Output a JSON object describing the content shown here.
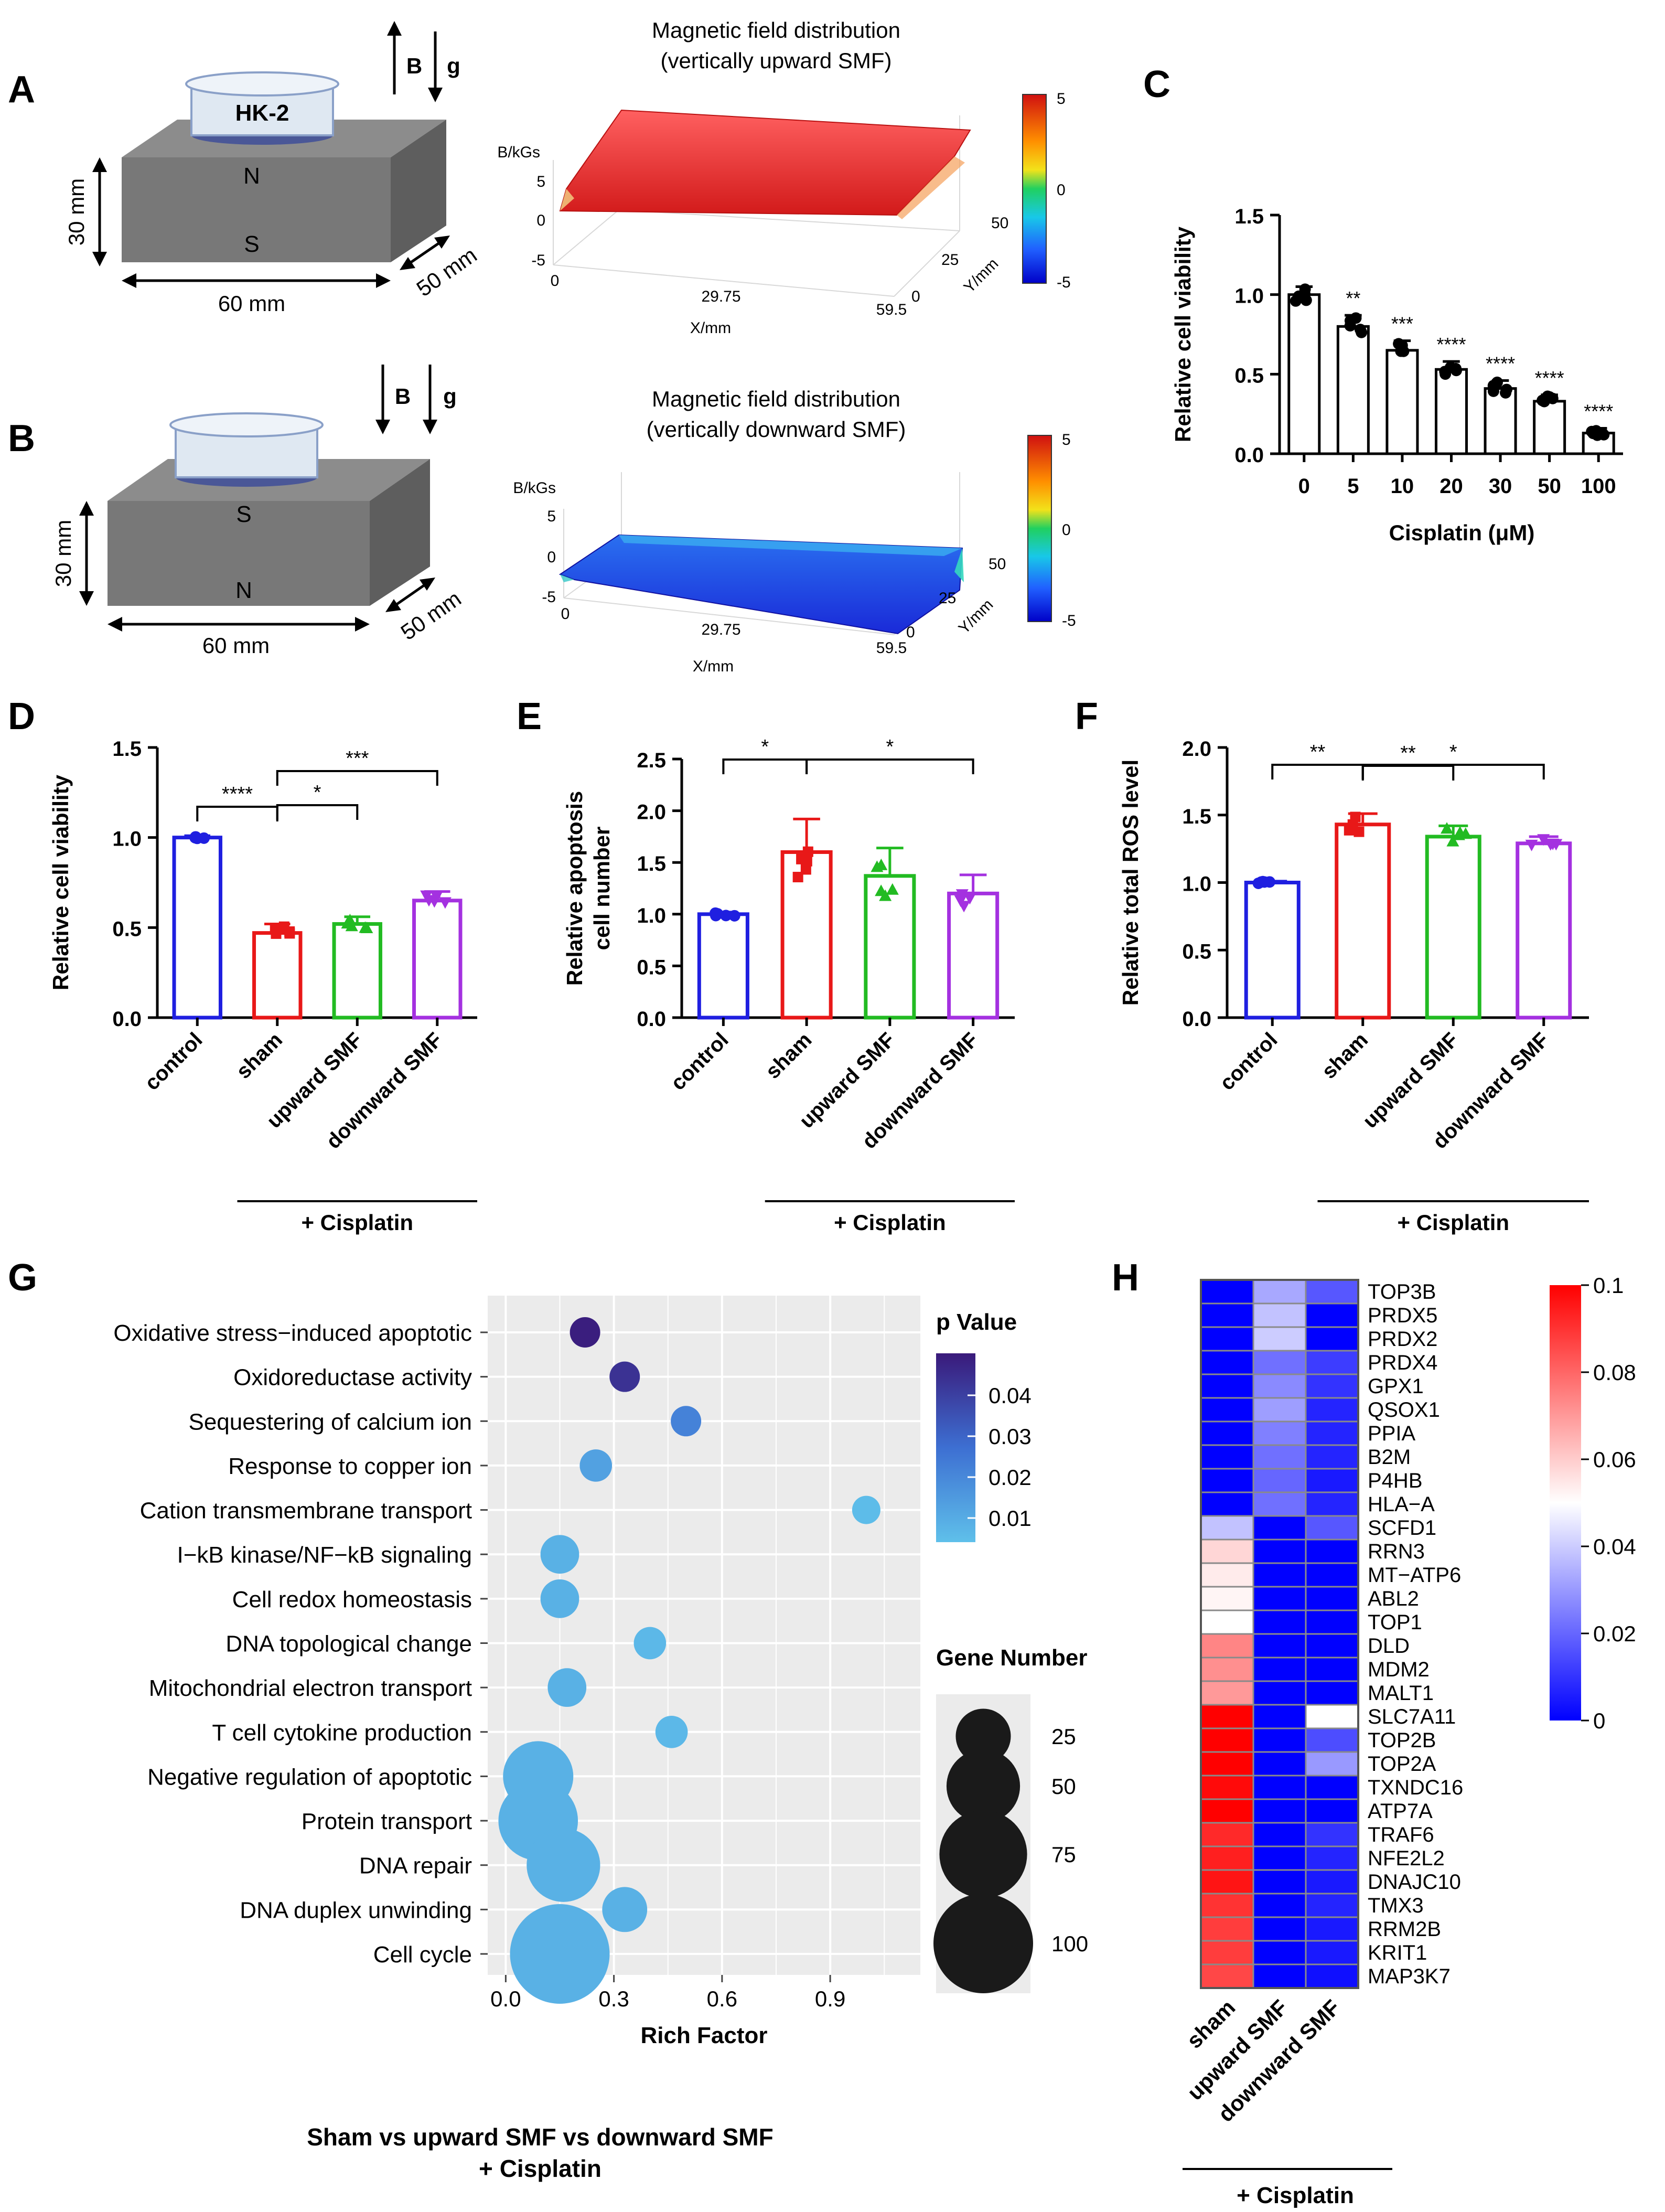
{
  "panels": {
    "A": "A",
    "B": "B",
    "C": "C",
    "D": "D",
    "E": "E",
    "F": "F",
    "G": "G",
    "H": "H"
  },
  "schematics": {
    "A": {
      "dish_label": "HK-2",
      "top_pole": "N",
      "bottom_pole": "S",
      "height": "30 mm",
      "width": "60 mm",
      "depth": "50 mm",
      "arrow_b": "B",
      "arrow_g": "g"
    },
    "B": {
      "top_pole": "S",
      "bottom_pole": "N",
      "height": "30 mm",
      "width": "60 mm",
      "depth": "50 mm",
      "arrow_b": "B",
      "arrow_g": "g"
    }
  },
  "fields": {
    "A": {
      "title1": "Magnetic field distribution",
      "title2": "(vertically upward SMF)",
      "zlabel": "B/kGs",
      "zticks": [
        "5",
        "0",
        "-5"
      ],
      "xticks": [
        "0",
        "29.75",
        "59.5"
      ],
      "yticks": [
        "0",
        "25",
        "50"
      ],
      "xlabel": "X/mm",
      "ylabel": "Y/mm",
      "cbar_ticks": [
        "5",
        "0",
        "-5"
      ],
      "value_kGs": 5
    },
    "B": {
      "title1": "Magnetic field distribution",
      "title2": "(vertically downward SMF)",
      "zlabel": "B/kGs",
      "zticks": [
        "5",
        "0",
        "-5"
      ],
      "xticks": [
        "0",
        "29.75",
        "59.5"
      ],
      "yticks": [
        "0",
        "25",
        "50"
      ],
      "xlabel": "X/mm",
      "ylabel": "Y/mm",
      "cbar_ticks": [
        "5",
        "0",
        "-5"
      ],
      "value_kGs": -5
    }
  },
  "colors": {
    "control": "#1f1fe0",
    "sham": "#e81818",
    "upward": "#22bb22",
    "downward": "#a431e0",
    "bubble": "#5fb4e2"
  },
  "chart_data": [
    {
      "id": "C",
      "type": "bar",
      "title": "",
      "xlabel": "Cisplatin (μM)",
      "ylabel": "Relative cell viability",
      "categories": [
        "0",
        "5",
        "10",
        "20",
        "30",
        "50",
        "100"
      ],
      "values": [
        1.0,
        0.8,
        0.65,
        0.53,
        0.41,
        0.33,
        0.13
      ],
      "errors": [
        0.05,
        0.07,
        0.06,
        0.05,
        0.05,
        0.04,
        0.03
      ],
      "significance": [
        "",
        "**",
        "***",
        "****",
        "****",
        "****",
        "****"
      ],
      "ylim": [
        0,
        1.5
      ],
      "yticks": [
        "0.0",
        "0.5",
        "1.0",
        "1.5"
      ]
    },
    {
      "id": "D",
      "type": "bar",
      "ylabel": "Relative cell viability",
      "categories": [
        "control",
        "sham",
        "upward SMF",
        "downward SMF"
      ],
      "values": [
        1.0,
        0.47,
        0.52,
        0.65
      ],
      "errors": [
        0.01,
        0.05,
        0.04,
        0.05
      ],
      "ylim": [
        0,
        1.5
      ],
      "yticks": [
        "0.0",
        "0.5",
        "1.0",
        "1.5"
      ],
      "group_label": "+ Cisplatin",
      "brackets": [
        [
          "control",
          "sham",
          "****"
        ],
        [
          "sham",
          "upward SMF",
          "*"
        ],
        [
          "sham",
          "downward SMF",
          "***"
        ]
      ]
    },
    {
      "id": "E",
      "type": "bar",
      "ylabel": "Relative apoptosis cell number",
      "categories": [
        "control",
        "sham",
        "upward SMF",
        "downward SMF"
      ],
      "values": [
        1.0,
        1.6,
        1.37,
        1.2
      ],
      "errors": [
        0.02,
        0.32,
        0.27,
        0.18
      ],
      "ylim": [
        0,
        2.5
      ],
      "yticks": [
        "0.0",
        "0.5",
        "1.0",
        "1.5",
        "2.0",
        "2.5"
      ],
      "group_label": "+ Cisplatin",
      "brackets": [
        [
          "control",
          "sham",
          "*"
        ],
        [
          "sham",
          "downward SMF",
          "*"
        ]
      ]
    },
    {
      "id": "F",
      "type": "bar",
      "ylabel": "Relative total ROS level",
      "categories": [
        "control",
        "sham",
        "upward SMF",
        "downward SMF"
      ],
      "values": [
        1.0,
        1.43,
        1.34,
        1.29
      ],
      "errors": [
        0.01,
        0.08,
        0.08,
        0.05
      ],
      "ylim": [
        0,
        2.0
      ],
      "yticks": [
        "0.0",
        "0.5",
        "1.0",
        "1.5",
        "2.0"
      ],
      "group_label": "+ Cisplatin",
      "brackets": [
        [
          "control",
          "sham",
          "**"
        ],
        [
          "sham",
          "upward SMF",
          "**"
        ],
        [
          "sham",
          "downward SMF",
          "*"
        ]
      ]
    },
    {
      "id": "G",
      "type": "scatter",
      "xlabel": "Rich Factor",
      "xticks": [
        "0.0",
        "0.3",
        "0.6",
        "0.9"
      ],
      "xlim": [
        -0.05,
        1.15
      ],
      "terms": [
        "Oxidative stress−induced apoptotic",
        "Oxidoreductase activity",
        "Sequestering of calcium ion",
        "Response to copper ion",
        "Cation transmembrane transport",
        "I−kB kinase/NF−kB signaling",
        "Cell redox homeostasis",
        "DNA topological change",
        "Mitochondrial electron transport",
        "T cell cytokine production",
        "Negative regulation of apoptotic",
        "Protein transport",
        "DNA repair",
        "DNA duplex unwinding",
        "Cell cycle"
      ],
      "rich_factor": [
        0.22,
        0.33,
        0.5,
        0.25,
        1.0,
        0.15,
        0.15,
        0.4,
        0.17,
        0.46,
        0.09,
        0.09,
        0.16,
        0.33,
        0.15
      ],
      "gene_number": [
        5,
        5,
        5,
        6,
        4,
        10,
        10,
        6,
        10,
        6,
        45,
        60,
        50,
        15,
        100
      ],
      "p_value": [
        0.045,
        0.04,
        0.02,
        0.012,
        0.005,
        0.008,
        0.008,
        0.006,
        0.008,
        0.006,
        0.008,
        0.008,
        0.008,
        0.008,
        0.008
      ],
      "legend_p_title": "p Value",
      "legend_p_ticks": [
        "0.04",
        "0.03",
        "0.02",
        "0.01"
      ],
      "legend_size_title": "Gene Number",
      "legend_size_values": [
        "25",
        "50",
        "75",
        "100"
      ],
      "caption1": "Sham vs upward SMF vs downward SMF",
      "caption2": "+ Cisplatin"
    },
    {
      "id": "H",
      "type": "heatmap",
      "columns": [
        "sham",
        "upward SMF",
        "downward SMF"
      ],
      "rows": [
        "TOP3B",
        "PRDX5",
        "PRDX2",
        "PRDX4",
        "GPX1",
        "QSOX1",
        "PPIA",
        "B2M",
        "P4HB",
        "HLA−A",
        "SCFD1",
        "RRN3",
        "MT−ATP6",
        "ABL2",
        "TOP1",
        "DLD",
        "MDM2",
        "MALT1",
        "SLC7A11",
        "TOP2B",
        "TOP2A",
        "TXNDC16",
        "ATP7A",
        "TRAF6",
        "NFE2L2",
        "DNAJC10",
        "TMX3",
        "RRM2B",
        "KRIT1",
        "MAP3K7"
      ],
      "values": [
        [
          0.0,
          0.033,
          0.017
        ],
        [
          0.0,
          0.038,
          0.0
        ],
        [
          0.0,
          0.04,
          0.0
        ],
        [
          0.0,
          0.022,
          0.012
        ],
        [
          0.0,
          0.027,
          0.01
        ],
        [
          0.0,
          0.031,
          0.007
        ],
        [
          0.0,
          0.025,
          0.007
        ],
        [
          0.0,
          0.022,
          0.007
        ],
        [
          0.0,
          0.02,
          0.005
        ],
        [
          0.0,
          0.022,
          0.007
        ],
        [
          0.038,
          0.0,
          0.017
        ],
        [
          0.058,
          0.0,
          0.0
        ],
        [
          0.054,
          0.0,
          0.0
        ],
        [
          0.052,
          0.0,
          0.0
        ],
        [
          0.05,
          0.0,
          0.0
        ],
        [
          0.074,
          0.0,
          0.0
        ],
        [
          0.072,
          0.0,
          0.0
        ],
        [
          0.07,
          0.0,
          0.0
        ],
        [
          0.1,
          0.0,
          0.05
        ],
        [
          0.1,
          0.0,
          0.015
        ],
        [
          0.1,
          0.0,
          0.03
        ],
        [
          0.098,
          0.0,
          0.0
        ],
        [
          0.1,
          0.0,
          0.0
        ],
        [
          0.092,
          0.0,
          0.01
        ],
        [
          0.094,
          0.0,
          0.007
        ],
        [
          0.096,
          0.0,
          0.005
        ],
        [
          0.09,
          0.0,
          0.007
        ],
        [
          0.088,
          0.0,
          0.005
        ],
        [
          0.088,
          0.0,
          0.005
        ],
        [
          0.086,
          0.0,
          0.003
        ]
      ],
      "scale_min": 0,
      "scale_max": 0.1,
      "colorbar_ticks": [
        "0.1",
        "0.08",
        "0.06",
        "0.04",
        "0.02",
        "0"
      ],
      "group_label": "+ Cisplatin"
    }
  ]
}
